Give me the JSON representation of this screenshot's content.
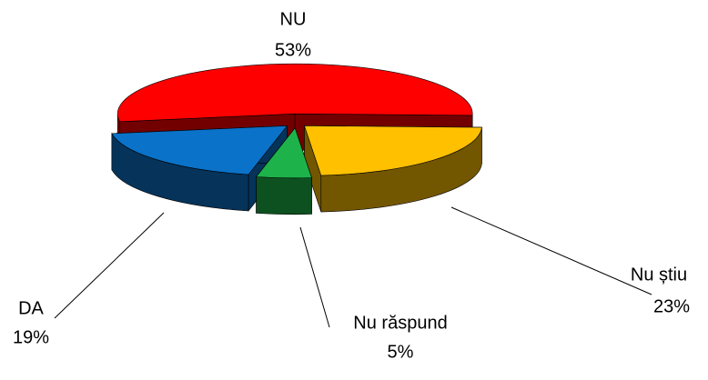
{
  "chart_data": {
    "type": "pie",
    "categories": [
      "NU",
      "Nu știu",
      "Nu răspund",
      "DA"
    ],
    "values": [
      53,
      23,
      5,
      19
    ],
    "value_labels": [
      "53%",
      "23%",
      "5%",
      "19%"
    ],
    "colors": [
      "#ff0000",
      "#ffc000",
      "#1db34a",
      "#0a72c8"
    ]
  }
}
